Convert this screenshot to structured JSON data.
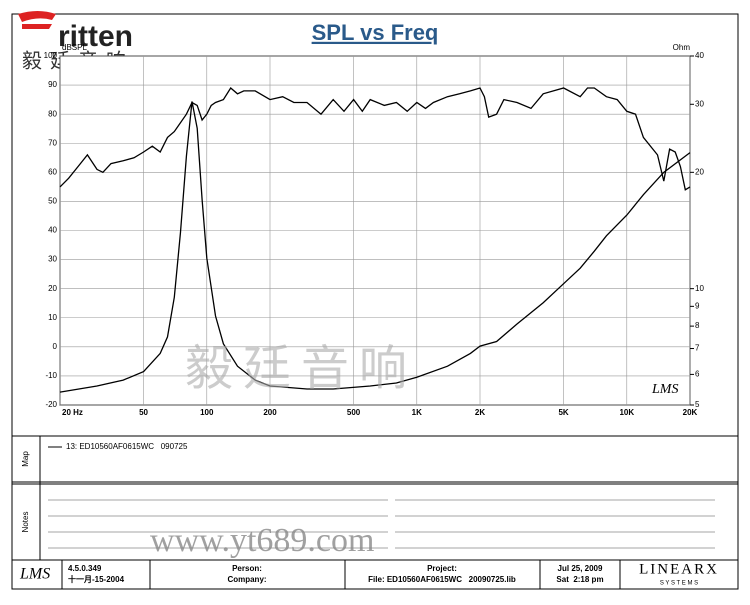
{
  "header": {
    "logo": "ritten",
    "logo_chinese": "毅廷音响"
  },
  "chart_data": {
    "type": "line",
    "title": "SPL vs Freq",
    "y_label": "dBSPL",
    "y2_label": "Ohm",
    "annotation": "LMS",
    "xscale": "log",
    "xlim": [
      20,
      20000
    ],
    "xticks": [
      {
        "value": 20,
        "label": "20 Hz"
      },
      50,
      100,
      200,
      500,
      {
        "value": 1000,
        "label": "1K"
      },
      {
        "value": 2000,
        "label": "2K"
      },
      {
        "value": 5000,
        "label": "5K"
      },
      {
        "value": 10000,
        "label": "10K"
      },
      {
        "value": 20000,
        "label": "20K"
      }
    ],
    "ylim": [
      -20,
      100
    ],
    "yticks": [
      -20,
      -10,
      0,
      10,
      20,
      30,
      40,
      50,
      60,
      70,
      80,
      90,
      100
    ],
    "y2scale": "log",
    "y2lim": [
      5,
      40
    ],
    "y2ticks": [
      5,
      6,
      7,
      8,
      9,
      10,
      20,
      30,
      40
    ],
    "grid": true,
    "series": [
      {
        "name": "13: ED10560AF0615WC   090725",
        "color": "#000000",
        "x": [
          20,
          22,
          25,
          27,
          30,
          32,
          35,
          40,
          45,
          50,
          55,
          60,
          65,
          70,
          80,
          85,
          90,
          95,
          100,
          105,
          110,
          120,
          130,
          140,
          150,
          170,
          200,
          230,
          260,
          300,
          350,
          400,
          450,
          500,
          550,
          600,
          700,
          800,
          900,
          1000,
          1100,
          1200,
          1400,
          1600,
          1800,
          2000,
          2100,
          2200,
          2400,
          2600,
          3000,
          3500,
          4000,
          5000,
          6000,
          6500,
          7000,
          8000,
          9000,
          10000,
          11000,
          12000,
          14000,
          15000,
          16000,
          17000,
          18000,
          19000,
          20000
        ],
        "values": [
          55,
          58,
          63,
          66,
          61,
          60,
          63,
          64,
          65,
          67,
          69,
          67,
          72,
          74,
          80,
          84,
          83,
          78,
          80,
          83,
          84,
          85,
          89,
          87,
          88,
          88,
          85,
          86,
          84,
          84,
          80,
          85,
          81,
          85,
          81,
          85,
          83,
          84,
          81,
          84,
          82,
          84,
          86,
          87,
          88,
          89,
          86,
          79,
          80,
          85,
          84,
          82,
          87,
          89,
          86,
          89,
          89,
          86,
          85,
          81,
          80,
          72,
          66,
          57,
          68,
          67,
          62,
          54,
          55
        ]
      },
      {
        "color": "#000000",
        "axis": "y2",
        "x": [
          20,
          30,
          40,
          50,
          60,
          65,
          70,
          75,
          80,
          85,
          90,
          95,
          100,
          110,
          120,
          140,
          170,
          200,
          300,
          400,
          600,
          800,
          1000,
          1400,
          1800,
          2000,
          2400,
          3000,
          4000,
          5000,
          6000,
          7000,
          8000,
          10000,
          12000,
          15000,
          20000
        ],
        "values": [
          5.4,
          5.6,
          5.8,
          6.1,
          6.8,
          7.5,
          9.5,
          14,
          22,
          30.5,
          26,
          17,
          12,
          8.5,
          7.2,
          6.3,
          5.8,
          5.6,
          5.5,
          5.5,
          5.6,
          5.7,
          5.9,
          6.3,
          6.8,
          7.1,
          7.3,
          8.1,
          9.2,
          10.3,
          11.3,
          12.5,
          13.7,
          15.5,
          17.5,
          20,
          22.5
        ]
      }
    ]
  },
  "watermark": {
    "chinese": "毅廷音响",
    "url": "www.yt689.com"
  },
  "map": {
    "label": "Map"
  },
  "notes": {
    "label": "Notes"
  },
  "footer": {
    "logo": "LMS",
    "version": "4.5.0.349",
    "version_date": "十一月-15-2004",
    "person": "Person:",
    "company": "Company:",
    "project": "Project:",
    "file": "File: ED10560AF0615WC   20090725.lib",
    "date": "Jul 25, 2009",
    "time": "Sat  2:18 pm",
    "brand": "LINEARX",
    "brand_sub": "S Y S T E M S"
  }
}
